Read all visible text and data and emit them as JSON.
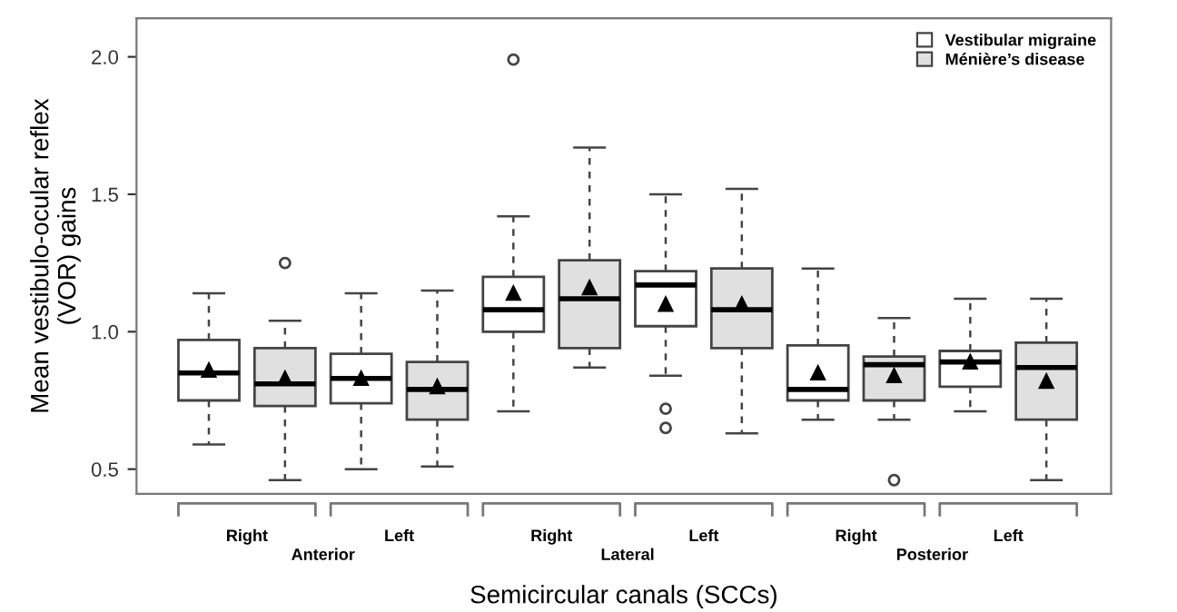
{
  "chart_data": {
    "type": "box",
    "xlabel": "Semicircular canals (SCCs)",
    "ylabel": "Mean vestibulo-ocular reflex\n(VOR) gains",
    "categories": [
      "Right",
      "Left",
      "Right",
      "Left",
      "Right",
      "Left"
    ],
    "annotations": [
      "Anterior",
      "Lateral",
      "Posterior"
    ],
    "ylim": [
      0.41,
      2.14
    ],
    "yticks": [
      {
        "value": 0.5,
        "label": "0.5"
      },
      {
        "value": 1.0,
        "label": "1.0"
      },
      {
        "value": 1.5,
        "label": "1.5"
      },
      {
        "value": 2.0,
        "label": "2.0"
      }
    ],
    "grid": false,
    "legend": "top right",
    "marker": "triangle",
    "series": [
      {
        "name": "Vestibular migraine",
        "color": "#ffffff",
        "boxes": [
          {
            "low": 0.59,
            "q1": 0.75,
            "median": 0.85,
            "q3": 0.97,
            "high": 1.14,
            "mean": 0.86
          },
          {
            "low": 0.5,
            "q1": 0.74,
            "median": 0.83,
            "q3": 0.92,
            "high": 1.14,
            "mean": 0.83
          },
          {
            "low": 0.71,
            "q1": 1.0,
            "median": 1.08,
            "q3": 1.2,
            "high": 1.42,
            "mean": 1.14,
            "outliers": [
              1.99
            ]
          },
          {
            "low": 0.84,
            "q1": 1.02,
            "median": 1.17,
            "q3": 1.22,
            "high": 1.5,
            "mean": 1.1,
            "outliers": [
              0.72,
              0.65
            ]
          },
          {
            "low": 0.68,
            "q1": 0.75,
            "median": 0.79,
            "q3": 0.95,
            "high": 1.23,
            "mean": 0.85
          },
          {
            "low": 0.71,
            "q1": 0.8,
            "median": 0.89,
            "q3": 0.93,
            "high": 1.12,
            "mean": 0.89
          }
        ]
      },
      {
        "name": "Ménière’s disease",
        "color": "#e0e0e0",
        "boxes": [
          {
            "low": 0.46,
            "q1": 0.73,
            "median": 0.81,
            "q3": 0.94,
            "high": 1.04,
            "mean": 0.83,
            "outliers": [
              1.25
            ]
          },
          {
            "low": 0.51,
            "q1": 0.68,
            "median": 0.79,
            "q3": 0.89,
            "high": 1.15,
            "mean": 0.8
          },
          {
            "low": 0.87,
            "q1": 0.94,
            "median": 1.12,
            "q3": 1.26,
            "high": 1.67,
            "mean": 1.16
          },
          {
            "low": 0.63,
            "q1": 0.94,
            "median": 1.08,
            "q3": 1.23,
            "high": 1.52,
            "mean": 1.1
          },
          {
            "low": 0.68,
            "q1": 0.75,
            "median": 0.88,
            "q3": 0.91,
            "high": 1.05,
            "mean": 0.84,
            "outliers": [
              0.46
            ]
          },
          {
            "low": 0.46,
            "q1": 0.68,
            "median": 0.87,
            "q3": 0.96,
            "high": 1.12,
            "mean": 0.82
          }
        ]
      }
    ]
  }
}
